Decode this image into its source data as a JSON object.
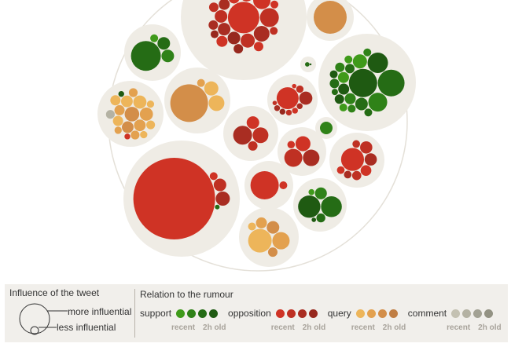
{
  "chart_data": {
    "type": "bubble-pack",
    "title": "",
    "series": [
      {
        "name": "support",
        "category": "support"
      },
      {
        "name": "opposition",
        "category": "opposition"
      },
      {
        "name": "query",
        "category": "query"
      },
      {
        "name": "comment",
        "category": "comment"
      }
    ],
    "clusters": [
      {
        "id": "c01",
        "bubbles": [
          {
            "category": "opposition",
            "age": 0,
            "size": 20
          },
          {
            "category": "opposition",
            "age": 1,
            "size": 12
          },
          {
            "category": "opposition",
            "age": 0,
            "size": 11
          },
          {
            "category": "opposition",
            "age": 2,
            "size": 10
          },
          {
            "category": "opposition",
            "age": 1,
            "size": 9
          },
          {
            "category": "opposition",
            "age": 0,
            "size": 9
          },
          {
            "category": "opposition",
            "age": 3,
            "size": 8
          },
          {
            "category": "opposition",
            "age": 2,
            "size": 8
          },
          {
            "category": "opposition",
            "age": 1,
            "size": 8
          },
          {
            "category": "opposition",
            "age": 0,
            "size": 7
          },
          {
            "category": "opposition",
            "age": 2,
            "size": 7
          },
          {
            "category": "opposition",
            "age": 3,
            "size": 7
          },
          {
            "category": "opposition",
            "age": 1,
            "size": 7
          },
          {
            "category": "opposition",
            "age": 0,
            "size": 7
          },
          {
            "category": "opposition",
            "age": 2,
            "size": 6
          },
          {
            "category": "opposition",
            "age": 1,
            "size": 6
          },
          {
            "category": "opposition",
            "age": 3,
            "size": 6
          },
          {
            "category": "opposition",
            "age": 0,
            "size": 6
          },
          {
            "category": "opposition",
            "age": 2,
            "size": 6
          },
          {
            "category": "opposition",
            "age": 1,
            "size": 5
          },
          {
            "category": "opposition",
            "age": 0,
            "size": 5
          },
          {
            "category": "opposition",
            "age": 3,
            "size": 5
          }
        ]
      },
      {
        "id": "c02",
        "bubbles": [
          {
            "category": "query",
            "age": 2,
            "size": 21
          }
        ]
      },
      {
        "id": "c03",
        "bubbles": [
          {
            "category": "support",
            "age": 2,
            "size": 19
          },
          {
            "category": "support",
            "age": 1,
            "size": 8
          },
          {
            "category": "support",
            "age": 2,
            "size": 8
          },
          {
            "category": "support",
            "age": 0,
            "size": 5
          }
        ]
      },
      {
        "id": "c04",
        "bubbles": [
          {
            "category": "support",
            "age": 2,
            "size": 6
          },
          {
            "category": "support",
            "age": 3,
            "size": 2
          }
        ]
      },
      {
        "id": "c05",
        "bubbles": [
          {
            "category": "support",
            "age": 3,
            "size": 18
          },
          {
            "category": "support",
            "age": 2,
            "size": 17
          },
          {
            "category": "support",
            "age": 3,
            "size": 13
          },
          {
            "category": "support",
            "age": 1,
            "size": 12
          },
          {
            "category": "support",
            "age": 0,
            "size": 9
          },
          {
            "category": "support",
            "age": 2,
            "size": 8
          },
          {
            "category": "support",
            "age": 1,
            "size": 7
          },
          {
            "category": "support",
            "age": 3,
            "size": 7
          },
          {
            "category": "support",
            "age": 0,
            "size": 7
          },
          {
            "category": "support",
            "age": 2,
            "size": 6
          },
          {
            "category": "support",
            "age": 1,
            "size": 6
          },
          {
            "category": "support",
            "age": 3,
            "size": 6
          },
          {
            "category": "support",
            "age": 2,
            "size": 6
          },
          {
            "category": "support",
            "age": 0,
            "size": 5
          },
          {
            "category": "support",
            "age": 1,
            "size": 5
          },
          {
            "category": "support",
            "age": 2,
            "size": 5
          },
          {
            "category": "support",
            "age": 3,
            "size": 5
          },
          {
            "category": "support",
            "age": 1,
            "size": 5
          },
          {
            "category": "support",
            "age": 0,
            "size": 5
          },
          {
            "category": "support",
            "age": 2,
            "size": 4
          }
        ]
      },
      {
        "id": "c06",
        "bubbles": [
          {
            "category": "query",
            "age": 2,
            "size": 10
          },
          {
            "category": "query",
            "age": 1,
            "size": 9
          },
          {
            "category": "query",
            "age": 0,
            "size": 9
          },
          {
            "category": "query",
            "age": 1,
            "size": 8
          },
          {
            "category": "query",
            "age": 0,
            "size": 8
          },
          {
            "category": "query",
            "age": 2,
            "size": 8
          },
          {
            "category": "query",
            "age": 1,
            "size": 7
          },
          {
            "category": "query",
            "age": 0,
            "size": 7
          },
          {
            "category": "query",
            "age": 0,
            "size": 7
          },
          {
            "category": "query",
            "age": 1,
            "size": 6
          },
          {
            "category": "query",
            "age": 1,
            "size": 6
          },
          {
            "category": "query",
            "age": 0,
            "size": 6
          },
          {
            "category": "query",
            "age": 0,
            "size": 5
          },
          {
            "category": "query",
            "age": 1,
            "size": 5
          },
          {
            "category": "query",
            "age": 0,
            "size": 5
          },
          {
            "category": "comment",
            "age": 1,
            "size": 6
          },
          {
            "category": "opposition",
            "age": 0,
            "size": 4
          },
          {
            "category": "support",
            "age": 3,
            "size": 4
          }
        ]
      },
      {
        "id": "c07",
        "bubbles": [
          {
            "category": "query",
            "age": 2,
            "size": 24
          },
          {
            "category": "query",
            "age": 0,
            "size": 10
          },
          {
            "category": "query",
            "age": 0,
            "size": 9
          },
          {
            "category": "query",
            "age": 1,
            "size": 5
          }
        ]
      },
      {
        "id": "c08",
        "bubbles": [
          {
            "category": "opposition",
            "age": 0,
            "size": 15
          },
          {
            "category": "opposition",
            "age": 2,
            "size": 9
          },
          {
            "category": "opposition",
            "age": 1,
            "size": 5
          },
          {
            "category": "opposition",
            "age": 2,
            "size": 4
          },
          {
            "category": "opposition",
            "age": 0,
            "size": 4
          },
          {
            "category": "opposition",
            "age": 1,
            "size": 4
          },
          {
            "category": "opposition",
            "age": 3,
            "size": 4
          },
          {
            "category": "opposition",
            "age": 2,
            "size": 4
          },
          {
            "category": "opposition",
            "age": 0,
            "size": 3
          },
          {
            "category": "opposition",
            "age": 1,
            "size": 3
          }
        ]
      },
      {
        "id": "c09",
        "bubbles": [
          {
            "category": "support",
            "age": 1,
            "size": 8
          }
        ]
      },
      {
        "id": "c10",
        "bubbles": [
          {
            "category": "opposition",
            "age": 2,
            "size": 12
          },
          {
            "category": "opposition",
            "age": 1,
            "size": 10
          },
          {
            "category": "opposition",
            "age": 0,
            "size": 8
          },
          {
            "category": "opposition",
            "age": 1,
            "size": 6
          }
        ]
      },
      {
        "id": "c11",
        "bubbles": [
          {
            "category": "opposition",
            "age": 1,
            "size": 12
          },
          {
            "category": "opposition",
            "age": 2,
            "size": 11
          },
          {
            "category": "opposition",
            "age": 0,
            "size": 10
          },
          {
            "category": "opposition",
            "age": 0,
            "size": 5
          }
        ]
      },
      {
        "id": "c12",
        "bubbles": [
          {
            "category": "opposition",
            "age": 0,
            "size": 15
          },
          {
            "category": "opposition",
            "age": 2,
            "size": 8
          },
          {
            "category": "opposition",
            "age": 1,
            "size": 8
          },
          {
            "category": "opposition",
            "age": 0,
            "size": 7
          },
          {
            "category": "opposition",
            "age": 1,
            "size": 6
          },
          {
            "category": "opposition",
            "age": 2,
            "size": 5
          },
          {
            "category": "opposition",
            "age": 0,
            "size": 5
          },
          {
            "category": "opposition",
            "age": 1,
            "size": 5
          }
        ]
      },
      {
        "id": "c13",
        "bubbles": [
          {
            "category": "opposition",
            "age": 0,
            "size": 52
          },
          {
            "category": "opposition",
            "age": 2,
            "size": 9
          },
          {
            "category": "opposition",
            "age": 1,
            "size": 8
          },
          {
            "category": "opposition",
            "age": 0,
            "size": 5
          },
          {
            "category": "support",
            "age": 2,
            "size": 3
          }
        ]
      },
      {
        "id": "c14",
        "bubbles": [
          {
            "category": "opposition",
            "age": 0,
            "size": 18
          },
          {
            "category": "opposition",
            "age": 0,
            "size": 5
          }
        ]
      },
      {
        "id": "c15",
        "bubbles": [
          {
            "category": "support",
            "age": 3,
            "size": 15
          },
          {
            "category": "support",
            "age": 2,
            "size": 14
          },
          {
            "category": "support",
            "age": 1,
            "size": 8
          },
          {
            "category": "support",
            "age": 2,
            "size": 6
          },
          {
            "category": "support",
            "age": 0,
            "size": 4
          },
          {
            "category": "support",
            "age": 3,
            "size": 3
          }
        ]
      },
      {
        "id": "c16",
        "bubbles": [
          {
            "category": "query",
            "age": 0,
            "size": 15
          },
          {
            "category": "query",
            "age": 1,
            "size": 11
          },
          {
            "category": "query",
            "age": 2,
            "size": 8
          },
          {
            "category": "query",
            "age": 1,
            "size": 7
          },
          {
            "category": "query",
            "age": 2,
            "size": 6
          },
          {
            "category": "query",
            "age": 0,
            "size": 5
          }
        ]
      }
    ]
  },
  "colors": {
    "support": [
      "#3f9a1a",
      "#2f8218",
      "#256c15",
      "#1f5a12"
    ],
    "opposition": [
      "#cf3325",
      "#bf3023",
      "#a92d22",
      "#97281e"
    ],
    "query": [
      "#edb55a",
      "#e3a14f",
      "#d38e49",
      "#c07e44"
    ],
    "comment": [
      "#c4c1b2",
      "#b4b2a3",
      "#a3a294",
      "#939283"
    ],
    "cluster_fill": "#efece5",
    "outline": "#e4e0d8",
    "legend_bg": "#f1efeb"
  },
  "legend": {
    "influence_title": "Influence of the tweet",
    "more_influential": "more influential",
    "less_influential": "less influential",
    "relation_title": "Relation to the rumour",
    "recent_label": "recent",
    "old_label": "2h old",
    "groups": [
      {
        "key": "support",
        "label": "support"
      },
      {
        "key": "opposition",
        "label": "opposition"
      },
      {
        "key": "query",
        "label": "query"
      },
      {
        "key": "comment",
        "label": "comment"
      }
    ]
  }
}
